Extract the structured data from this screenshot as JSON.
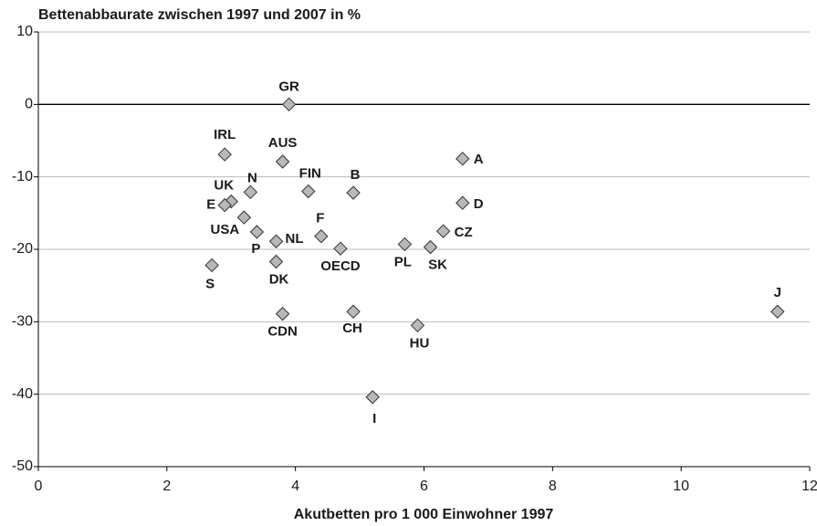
{
  "chart_data": {
    "type": "scatter",
    "title": "Bettenabbaurate zwischen 1997 und 2007 in %",
    "x_label": "Akutbetten  pro 1 000 Einwohner 1997",
    "labels": [
      "GR",
      "IRL",
      "AUS",
      "A",
      "FIN",
      "B",
      "N",
      "UK",
      "E",
      "D",
      "USA",
      "P",
      "NL",
      "F",
      "OECD",
      "CZ",
      "PL",
      "SK",
      "S",
      "DK",
      "CDN",
      "CH",
      "HU",
      "I",
      "J"
    ],
    "x": [
      3.9,
      2.9,
      3.8,
      6.6,
      4.2,
      4.9,
      3.3,
      3.0,
      2.9,
      6.6,
      3.2,
      3.4,
      3.7,
      4.4,
      4.7,
      6.3,
      5.7,
      6.1,
      2.7,
      3.7,
      3.8,
      4.9,
      5.9,
      5.2,
      11.5
    ],
    "values": [
      0,
      -6.9,
      -7.9,
      -7.5,
      -12.0,
      -12.2,
      -12.1,
      -13.4,
      -13.9,
      -13.6,
      -15.6,
      -17.6,
      -18.9,
      -18.2,
      -19.9,
      -17.5,
      -19.3,
      -19.7,
      -22.2,
      -21.7,
      -28.9,
      -28.6,
      -30.5,
      -40.4,
      -28.6
    ],
    "color": "#b8b8b8",
    "xlim": [
      0,
      12
    ],
    "xticks": [
      0,
      2,
      4,
      6,
      8,
      10,
      12
    ],
    "ylim": [
      -50,
      10
    ],
    "yticks": [
      10,
      0,
      -10,
      -20,
      -30,
      -40,
      -50
    ],
    "grid": true
  }
}
